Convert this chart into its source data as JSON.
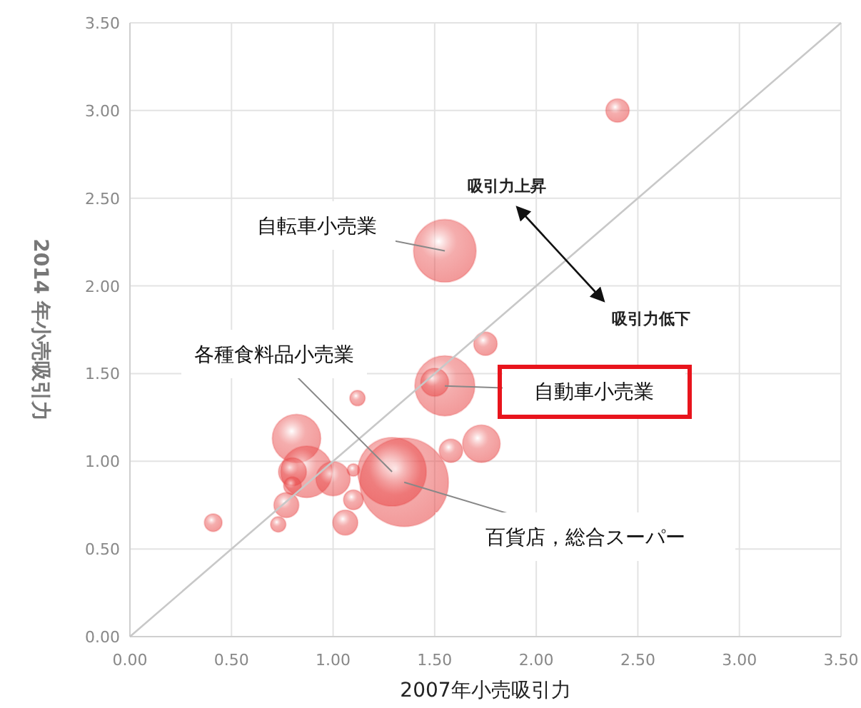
{
  "chart_data": {
    "type": "bubble",
    "xlabel": "2007年小売吸引力",
    "ylabel": "2014 年小売吸引力",
    "xlim": [
      0,
      3.5
    ],
    "ylim": [
      0,
      3.5
    ],
    "xticks": [
      {
        "value": 0,
        "label": "0.00"
      },
      {
        "value": 0.5,
        "label": "0.50"
      },
      {
        "value": 1,
        "label": "1.00"
      },
      {
        "value": 1.5,
        "label": "1.50"
      },
      {
        "value": 2,
        "label": "2.00"
      },
      {
        "value": 2.5,
        "label": "2.50"
      },
      {
        "value": 3,
        "label": "3.00"
      },
      {
        "value": 3.5,
        "label": "3.50"
      }
    ],
    "yticks": [
      {
        "value": 0,
        "label": "0.00"
      },
      {
        "value": 0.5,
        "label": "0.50"
      },
      {
        "value": 1,
        "label": "1.00"
      },
      {
        "value": 1.5,
        "label": "1.50"
      },
      {
        "value": 2,
        "label": "2.00"
      },
      {
        "value": 2.5,
        "label": "2.50"
      },
      {
        "value": 3,
        "label": "3.00"
      },
      {
        "value": 3.5,
        "label": "3.50"
      }
    ],
    "grid": true,
    "series": [
      {
        "color": "#e84848",
        "x": [
          2.4,
          1.55,
          1.75,
          1.55,
          1.5,
          1.73,
          1.58,
          1.12,
          0.82,
          0.87,
          0.8,
          1.0,
          1.29,
          1.35,
          0.77,
          1.1,
          1.06,
          0.41,
          0.73,
          0.8,
          1.1
        ],
        "values": [
          3.0,
          2.2,
          1.67,
          1.43,
          1.45,
          1.1,
          1.06,
          1.36,
          1.13,
          0.94,
          0.94,
          0.9,
          0.94,
          0.88,
          0.75,
          0.78,
          0.65,
          0.65,
          0.64,
          0.86,
          0.95
        ],
        "sizes": [
          0.07,
          0.5,
          0.07,
          0.46,
          0.1,
          0.18,
          0.07,
          0.03,
          0.3,
          0.34,
          0.1,
          0.15,
          0.6,
          1,
          0.08,
          0.05,
          0.08,
          0.04,
          0.03,
          0.04,
          0.02
        ]
      },
      {
        "type": "line",
        "color": "#c8c8c8",
        "x": [
          0,
          3.5
        ],
        "values": [
          0,
          3.5
        ]
      }
    ],
    "annotations": [
      {
        "text": "自転車小売業",
        "x": 1.55,
        "y": 2.2
      },
      {
        "text": "各種食料品小売業",
        "x": 1.29,
        "y": 0.94
      },
      {
        "text": "自動車小売業",
        "x": 1.55,
        "y": 1.43
      },
      {
        "text": "百貨店，総合スーパー",
        "x": 1.35,
        "y": 0.88
      },
      "吸引力上昇",
      "吸引力低下"
    ]
  }
}
